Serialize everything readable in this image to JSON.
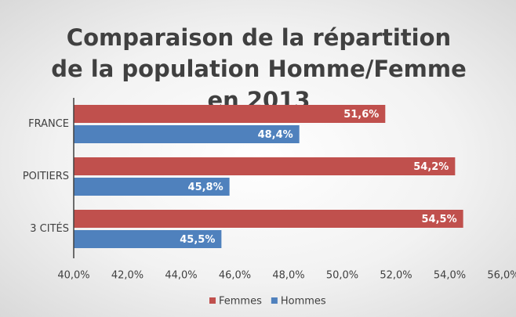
{
  "chart_data": {
    "type": "hbar",
    "title": "Comparaison de la répartition de la population Homme/Femme en 2013",
    "categories": [
      "FRANCE",
      "POITIERS",
      "3 CITÉS"
    ],
    "series": [
      {
        "name": "Femmes",
        "color": "#c0504d",
        "values": [
          51.6,
          54.2,
          54.5
        ],
        "value_labels": [
          "51,6%",
          "54,2%",
          "54,5%"
        ]
      },
      {
        "name": "Hommes",
        "color": "#4f81bd",
        "values": [
          48.4,
          45.8,
          45.5
        ],
        "value_labels": [
          "48,4%",
          "45,8%",
          "45,5%"
        ]
      }
    ],
    "xlim": [
      40,
      56
    ],
    "xticks": [
      {
        "value": 40,
        "label": "40,0%"
      },
      {
        "value": 42,
        "label": "42,0%"
      },
      {
        "value": 44,
        "label": "44,0%"
      },
      {
        "value": 46,
        "label": "46,0%"
      },
      {
        "value": 48,
        "label": "48,0%"
      },
      {
        "value": 50,
        "label": "50,0%"
      },
      {
        "value": 52,
        "label": "52,0%"
      },
      {
        "value": 54,
        "label": "54,0%"
      },
      {
        "value": 56,
        "label": "56,0%"
      }
    ],
    "grid": false,
    "legend": "bottom"
  }
}
